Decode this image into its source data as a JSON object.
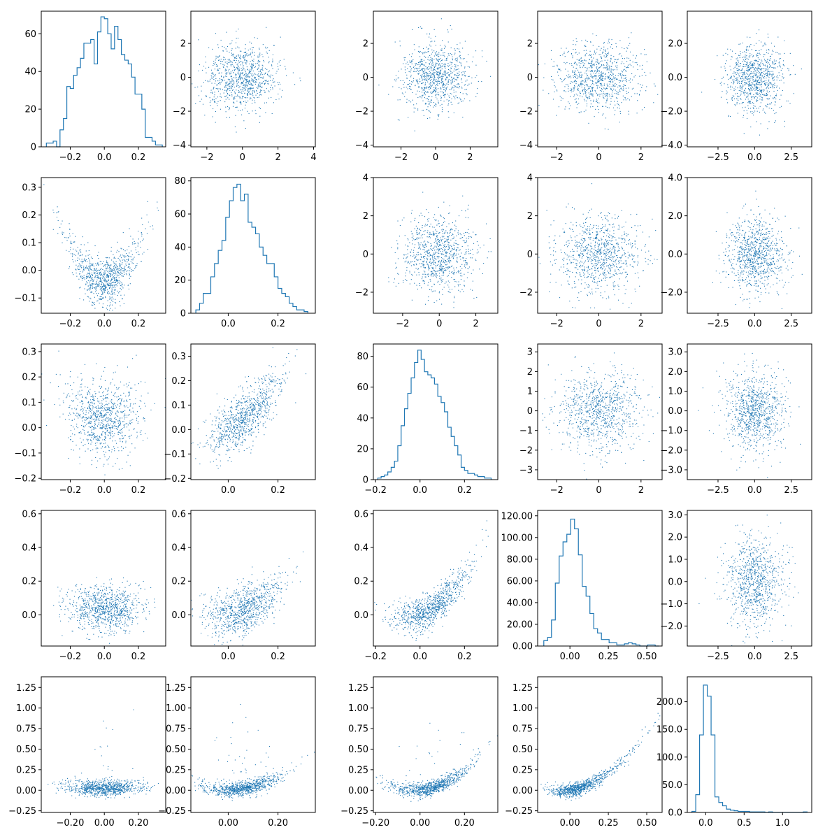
{
  "figure": {
    "rows": 5,
    "cols": 5,
    "point_color": "#1f77b4",
    "hist_color": "#1f77b4",
    "background": "#ffffff"
  },
  "chart_data": [
    {
      "type": "histogram",
      "row": 0,
      "col": 0,
      "xlim": [
        -0.37,
        0.36
      ],
      "ylim": [
        0,
        72
      ],
      "xticks": [
        -0.2,
        0.0,
        0.2
      ],
      "yticks": [
        0,
        20,
        40,
        60
      ],
      "bin_edges": [
        -0.34,
        -0.32,
        -0.3,
        -0.28,
        -0.26,
        -0.24,
        -0.22,
        -0.2,
        -0.18,
        -0.16,
        -0.14,
        -0.12,
        -0.1,
        -0.08,
        -0.06,
        -0.04,
        -0.02,
        0.0,
        0.02,
        0.04,
        0.06,
        0.08,
        0.1,
        0.12,
        0.14,
        0.16,
        0.18,
        0.2,
        0.22,
        0.24,
        0.26,
        0.28,
        0.3,
        0.32,
        0.34
      ],
      "counts": [
        2,
        2,
        3,
        0,
        9,
        15,
        32,
        31,
        38,
        42,
        47,
        55,
        55,
        57,
        44,
        61,
        69,
        68,
        60,
        52,
        64,
        57,
        49,
        46,
        44,
        37,
        28,
        28,
        20,
        5,
        5,
        3,
        1,
        1
      ]
    },
    {
      "type": "scatter",
      "row": 0,
      "col": 1,
      "xlim": [
        -2.9,
        4.1
      ],
      "ylim": [
        -4.1,
        3.9
      ],
      "xticks": [
        -2,
        0,
        2,
        4
      ],
      "yticks": [
        -4,
        -2,
        0,
        2
      ],
      "n": 900,
      "seed": 101,
      "dist": "normal",
      "mx": 0,
      "sx": 1,
      "my": 0,
      "sy": 1
    },
    {
      "type": "scatter",
      "row": 0,
      "col": 2,
      "xlim": [
        -3.6,
        3.6
      ],
      "ylim": [
        -4.1,
        3.9
      ],
      "xticks": [
        -2,
        0,
        2
      ],
      "yticks": [
        -4,
        -2,
        0,
        2
      ],
      "n": 900,
      "seed": 102,
      "dist": "normal",
      "mx": 0,
      "sx": 1,
      "my": 0,
      "sy": 1
    },
    {
      "type": "scatter",
      "row": 0,
      "col": 3,
      "xlim": [
        -2.9,
        3.0
      ],
      "ylim": [
        -4.1,
        3.9
      ],
      "xticks": [
        -2,
        0,
        2
      ],
      "yticks": [
        -4,
        -2,
        0,
        2
      ],
      "n": 900,
      "seed": 103,
      "dist": "normal",
      "mx": 0,
      "sx": 1,
      "my": 0,
      "sy": 1
    },
    {
      "type": "scatter",
      "row": 0,
      "col": 4,
      "xlim": [
        -4.6,
        3.9
      ],
      "ylim": [
        -4.1,
        3.9
      ],
      "xticks": [
        -2.5,
        0.0,
        2.5
      ],
      "yticks": [
        -4,
        -2,
        0,
        2
      ],
      "tick_format": "1",
      "n": 900,
      "seed": 104,
      "dist": "normal",
      "mx": 0,
      "sx": 1,
      "my": 0,
      "sy": 1
    },
    {
      "type": "scatter",
      "row": 1,
      "col": 0,
      "xlim": [
        -0.37,
        0.36
      ],
      "ylim": [
        -0.155,
        0.335
      ],
      "xticks": [
        -0.2,
        0.0,
        0.2
      ],
      "yticks": [
        -0.1,
        0.0,
        0.1,
        0.2,
        0.3
      ],
      "n": 900,
      "seed": 105,
      "dist": "parabola",
      "mx": 0,
      "sx": 0.11,
      "a": 3.0,
      "b": 0,
      "c": -0.04,
      "noise": 0.045
    },
    {
      "type": "histogram",
      "row": 1,
      "col": 1,
      "xlim": [
        -0.15,
        0.35
      ],
      "ylim": [
        0,
        82
      ],
      "xticks": [
        0.0,
        0.2
      ],
      "yticks": [
        0,
        20,
        40,
        60,
        80
      ],
      "bin_edges": [
        -0.13,
        -0.115,
        -0.1,
        -0.085,
        -0.07,
        -0.055,
        -0.04,
        -0.025,
        -0.01,
        0.005,
        0.02,
        0.035,
        0.05,
        0.065,
        0.08,
        0.095,
        0.11,
        0.125,
        0.14,
        0.155,
        0.17,
        0.185,
        0.2,
        0.215,
        0.23,
        0.245,
        0.26,
        0.275,
        0.29,
        0.305,
        0.32
      ],
      "counts": [
        2,
        6,
        12,
        12,
        22,
        30,
        38,
        44,
        58,
        68,
        76,
        78,
        68,
        72,
        55,
        52,
        48,
        40,
        35,
        30,
        30,
        22,
        15,
        12,
        10,
        6,
        4,
        2,
        2,
        1
      ]
    },
    {
      "type": "scatter",
      "row": 1,
      "col": 2,
      "xlim": [
        -3.6,
        3.2
      ],
      "ylim": [
        -3.1,
        4.0
      ],
      "xticks": [
        -2,
        0,
        2
      ],
      "yticks": [
        -2,
        0,
        2,
        4
      ],
      "n": 900,
      "seed": 106,
      "dist": "normal",
      "mx": 0,
      "sx": 1,
      "my": 0,
      "sy": 1
    },
    {
      "type": "scatter",
      "row": 1,
      "col": 3,
      "xlim": [
        -2.9,
        3.0
      ],
      "ylim": [
        -3.1,
        4.0
      ],
      "xticks": [
        -2,
        0,
        2
      ],
      "yticks": [
        -2,
        0,
        2,
        4
      ],
      "n": 900,
      "seed": 107,
      "dist": "normal",
      "mx": 0,
      "sx": 1,
      "my": 0,
      "sy": 1
    },
    {
      "type": "scatter",
      "row": 1,
      "col": 4,
      "xlim": [
        -4.6,
        3.9
      ],
      "ylim": [
        -3.1,
        4.0
      ],
      "xticks": [
        -2.5,
        0.0,
        2.5
      ],
      "yticks": [
        -2,
        0,
        2,
        4
      ],
      "tick_format": "1",
      "n": 900,
      "seed": 108,
      "dist": "normal",
      "mx": 0,
      "sx": 1,
      "my": 0,
      "sy": 1
    },
    {
      "type": "scatter",
      "row": 2,
      "col": 0,
      "xlim": [
        -0.37,
        0.36
      ],
      "ylim": [
        -0.205,
        0.33
      ],
      "xticks": [
        -0.2,
        0.0,
        0.2
      ],
      "yticks": [
        -0.2,
        -0.1,
        0.0,
        0.1,
        0.2,
        0.3
      ],
      "n": 900,
      "seed": 109,
      "dist": "parabola",
      "mx": 0,
      "sx": 0.11,
      "a": 0.8,
      "b": 0,
      "c": 0.03,
      "noise": 0.075
    },
    {
      "type": "scatter",
      "row": 2,
      "col": 1,
      "xlim": [
        -0.15,
        0.35
      ],
      "ylim": [
        -0.205,
        0.35
      ],
      "xticks": [
        0.0,
        0.2
      ],
      "yticks": [
        -0.2,
        -0.1,
        0.0,
        0.1,
        0.2,
        0.3
      ],
      "n": 900,
      "seed": 110,
      "dist": "parabola",
      "mx": 0.06,
      "sx": 0.08,
      "a": 1.5,
      "b": 0.6,
      "c": 0.0,
      "noise": 0.055
    },
    {
      "type": "histogram",
      "row": 2,
      "col": 2,
      "xlim": [
        -0.21,
        0.35
      ],
      "ylim": [
        0,
        88
      ],
      "xticks": [
        -0.2,
        0.0,
        0.2
      ],
      "yticks": [
        0,
        20,
        40,
        60,
        80
      ],
      "bin_edges": [
        -0.19,
        -0.175,
        -0.16,
        -0.145,
        -0.13,
        -0.115,
        -0.1,
        -0.085,
        -0.07,
        -0.055,
        -0.04,
        -0.025,
        -0.01,
        0.005,
        0.02,
        0.035,
        0.05,
        0.065,
        0.08,
        0.095,
        0.11,
        0.125,
        0.14,
        0.155,
        0.17,
        0.185,
        0.2,
        0.215,
        0.23,
        0.245,
        0.26,
        0.275,
        0.29,
        0.305,
        0.32
      ],
      "counts": [
        1,
        2,
        3,
        5,
        8,
        12,
        22,
        35,
        46,
        56,
        66,
        76,
        84,
        78,
        70,
        68,
        66,
        62,
        54,
        50,
        44,
        34,
        28,
        22,
        16,
        8,
        6,
        4,
        4,
        3,
        2,
        2,
        1,
        1
      ]
    },
    {
      "type": "scatter",
      "row": 2,
      "col": 3,
      "xlim": [
        -2.9,
        3.0
      ],
      "ylim": [
        -3.5,
        3.4
      ],
      "xticks": [
        -2,
        0,
        2
      ],
      "yticks": [
        -3,
        -2,
        -1,
        0,
        1,
        2,
        3
      ],
      "n": 900,
      "seed": 111,
      "dist": "normal",
      "mx": 0,
      "sx": 1,
      "my": 0,
      "sy": 1
    },
    {
      "type": "scatter",
      "row": 2,
      "col": 4,
      "xlim": [
        -4.6,
        3.9
      ],
      "ylim": [
        -3.5,
        3.4
      ],
      "xticks": [
        -2.5,
        0.0,
        2.5
      ],
      "yticks": [
        -3,
        -2,
        -1,
        0,
        1,
        2,
        3
      ],
      "tick_format": "1",
      "n": 900,
      "seed": 112,
      "dist": "normal",
      "mx": 0,
      "sx": 1,
      "my": 0,
      "sy": 1
    },
    {
      "type": "scatter",
      "row": 3,
      "col": 0,
      "xlim": [
        -0.37,
        0.36
      ],
      "ylim": [
        -0.185,
        0.62
      ],
      "xticks": [
        -0.2,
        0.0,
        0.2
      ],
      "yticks": [
        0.0,
        0.2,
        0.4,
        0.6
      ],
      "n": 900,
      "seed": 113,
      "dist": "parabola",
      "mx": 0,
      "sx": 0.11,
      "a": 0.5,
      "b": 0,
      "c": 0.03,
      "noise": 0.07
    },
    {
      "type": "scatter",
      "row": 3,
      "col": 1,
      "xlim": [
        -0.15,
        0.35
      ],
      "ylim": [
        -0.185,
        0.62
      ],
      "xticks": [
        0.0,
        0.2
      ],
      "yticks": [
        0.0,
        0.2,
        0.4,
        0.6
      ],
      "n": 900,
      "seed": 114,
      "dist": "parabola",
      "mx": 0.06,
      "sx": 0.08,
      "a": 3.0,
      "b": 0.2,
      "c": 0.0,
      "noise": 0.07
    },
    {
      "type": "scatter",
      "row": 3,
      "col": 2,
      "xlim": [
        -0.21,
        0.35
      ],
      "ylim": [
        -0.185,
        0.62
      ],
      "xticks": [
        -0.2,
        0.0,
        0.2
      ],
      "yticks": [
        0.0,
        0.2,
        0.4,
        0.6
      ],
      "n": 900,
      "seed": 115,
      "dist": "parabola",
      "mx": 0.05,
      "sx": 0.09,
      "a": 3.5,
      "b": 0.5,
      "c": 0.0,
      "noise": 0.05
    },
    {
      "type": "histogram",
      "row": 3,
      "col": 3,
      "xlim": [
        -0.21,
        0.6
      ],
      "ylim": [
        0,
        125
      ],
      "xticks": [
        0.0,
        0.25,
        0.5
      ],
      "yticks": [
        0,
        20,
        40,
        60,
        80,
        100,
        120
      ],
      "tick_format": "2",
      "bin_edges": [
        -0.17,
        -0.145,
        -0.12,
        -0.095,
        -0.07,
        -0.045,
        -0.02,
        0.005,
        0.03,
        0.055,
        0.08,
        0.105,
        0.13,
        0.155,
        0.18,
        0.205,
        0.23,
        0.255,
        0.28,
        0.305,
        0.33,
        0.355,
        0.38,
        0.405,
        0.43,
        0.455,
        0.48,
        0.505,
        0.53,
        0.555,
        0.58
      ],
      "counts": [
        5,
        8,
        24,
        58,
        83,
        96,
        103,
        117,
        108,
        84,
        55,
        46,
        30,
        16,
        12,
        6,
        6,
        3,
        3,
        1,
        1,
        2,
        3,
        2,
        1,
        0,
        0,
        1,
        1,
        0
      ]
    },
    {
      "type": "scatter",
      "row": 3,
      "col": 4,
      "xlim": [
        -4.6,
        3.9
      ],
      "ylim": [
        -2.9,
        3.2
      ],
      "xticks": [
        -2.5,
        0.0,
        2.5
      ],
      "yticks": [
        -2,
        -1,
        0,
        1,
        2,
        3
      ],
      "tick_format": "1",
      "n": 900,
      "seed": 116,
      "dist": "normal",
      "mx": 0,
      "sx": 1,
      "my": 0,
      "sy": 1
    },
    {
      "type": "scatter",
      "row": 4,
      "col": 0,
      "xlim": [
        -0.37,
        0.36
      ],
      "ylim": [
        -0.27,
        1.38
      ],
      "xticks": [
        -0.2,
        0.0,
        0.2
      ],
      "yticks": [
        -0.25,
        0.0,
        0.25,
        0.5,
        0.75,
        1.0,
        1.25
      ],
      "tick_format": "2",
      "n": 900,
      "seed": 117,
      "dist": "parabola",
      "mx": 0,
      "sx": 0.11,
      "a": 0.6,
      "b": 0,
      "c": 0.02,
      "noise": 0.045,
      "tail": 0.03
    },
    {
      "type": "scatter",
      "row": 4,
      "col": 1,
      "xlim": [
        -0.15,
        0.35
      ],
      "ylim": [
        -0.27,
        1.38
      ],
      "xticks": [
        0.0,
        0.2
      ],
      "yticks": [
        -0.25,
        0.0,
        0.25,
        0.5,
        0.75,
        1.0,
        1.25
      ],
      "tick_format": "2",
      "n": 900,
      "seed": 118,
      "dist": "parabola",
      "mx": 0.06,
      "sx": 0.08,
      "a": 4.0,
      "b": 0.0,
      "c": 0.0,
      "noise": 0.045,
      "tail": 0.03
    },
    {
      "type": "scatter",
      "row": 4,
      "col": 2,
      "xlim": [
        -0.21,
        0.35
      ],
      "ylim": [
        -0.27,
        1.38
      ],
      "xticks": [
        -0.2,
        0.0,
        0.2
      ],
      "yticks": [
        -0.25,
        0.0,
        0.25,
        0.5,
        0.75,
        1.0,
        1.25
      ],
      "tick_format": "2",
      "n": 900,
      "seed": 119,
      "dist": "parabola",
      "mx": 0.05,
      "sx": 0.09,
      "a": 5.0,
      "b": 0.2,
      "c": 0.0,
      "noise": 0.045,
      "tail": 0.02
    },
    {
      "type": "scatter",
      "row": 4,
      "col": 3,
      "xlim": [
        -0.21,
        0.6
      ],
      "ylim": [
        -0.27,
        1.38
      ],
      "xticks": [
        0.0,
        0.25,
        0.5
      ],
      "yticks": [
        -0.25,
        0.0,
        0.25,
        0.5,
        0.75,
        1.0,
        1.25
      ],
      "tick_format": "2",
      "n": 900,
      "seed": 120,
      "dist": "parabola",
      "mx": 0.04,
      "sx": 0.08,
      "a": 2.2,
      "b": 0.3,
      "c": 0.0,
      "noise": 0.04,
      "skew": true
    },
    {
      "type": "histogram",
      "row": 4,
      "col": 4,
      "xlim": [
        -0.24,
        1.38
      ],
      "ylim": [
        0,
        245
      ],
      "xticks": [
        0.0,
        0.5,
        1.0
      ],
      "yticks": [
        0,
        50,
        100,
        150,
        200
      ],
      "tick_format": "1",
      "bin_edges": [
        -0.18,
        -0.13,
        -0.08,
        -0.03,
        0.02,
        0.07,
        0.12,
        0.17,
        0.22,
        0.27,
        0.32,
        0.37,
        0.42,
        0.47,
        0.52,
        0.57,
        0.62,
        0.67,
        0.72,
        0.77,
        0.82,
        0.87,
        0.92,
        0.97,
        1.02,
        1.07,
        1.12,
        1.17,
        1.22,
        1.27,
        1.32
      ],
      "counts": [
        2,
        32,
        140,
        230,
        210,
        140,
        28,
        18,
        12,
        6,
        4,
        3,
        2,
        2,
        2,
        1,
        1,
        1,
        1,
        0,
        1,
        0,
        0,
        0,
        0,
        0,
        0,
        0,
        0,
        1
      ]
    }
  ]
}
